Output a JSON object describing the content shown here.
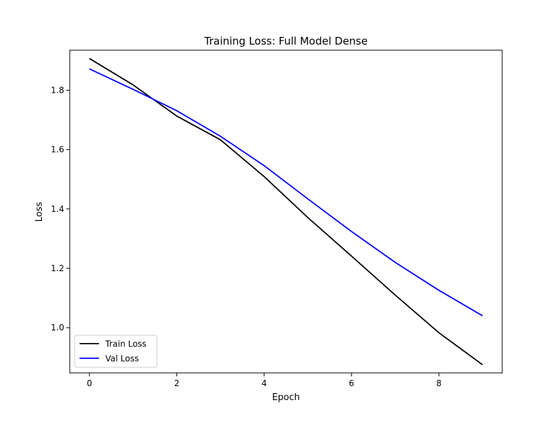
{
  "chart_data": {
    "type": "line",
    "title": "Training Loss: Full Model Dense",
    "xlabel": "Epoch",
    "ylabel": "Loss",
    "x": [
      0,
      1,
      2,
      3,
      4,
      5,
      6,
      7,
      8,
      9
    ],
    "xlim": [
      -0.45,
      9.45
    ],
    "ylim": [
      0.8475,
      1.935
    ],
    "xticks": [
      0,
      2,
      4,
      6,
      8
    ],
    "yticks": [
      1.0,
      1.2,
      1.4,
      1.6,
      1.8
    ],
    "xtick_labels": [
      "0",
      "2",
      "4",
      "6",
      "8"
    ],
    "ytick_labels": [
      "1.0",
      "1.2",
      "1.4",
      "1.6",
      "1.8"
    ],
    "grid": false,
    "legend": {
      "placement": "lower-left",
      "entries": [
        "Train Loss",
        "Val Loss"
      ]
    },
    "series": [
      {
        "name": "Train Loss",
        "color": "#000000",
        "values": [
          1.907,
          1.818,
          1.713,
          1.633,
          1.509,
          1.371,
          1.241,
          1.11,
          0.983,
          0.875
        ]
      },
      {
        "name": "Val Loss",
        "color": "#0000ff",
        "values": [
          1.872,
          1.803,
          1.731,
          1.645,
          1.546,
          1.434,
          1.324,
          1.22,
          1.126,
          1.04
        ]
      }
    ]
  }
}
